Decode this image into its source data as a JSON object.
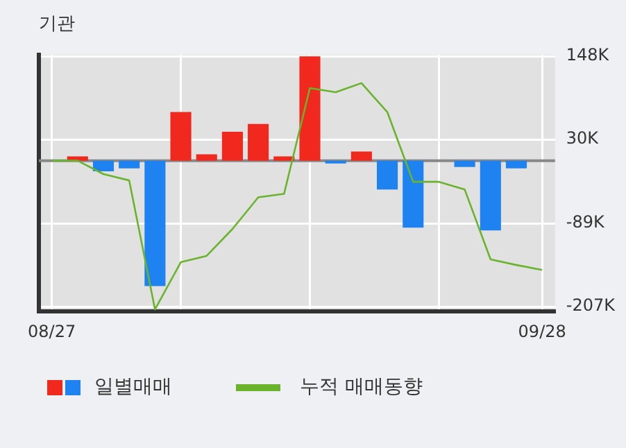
{
  "chart_data": {
    "type": "bar",
    "title": "기관",
    "categories": [
      "08/27",
      null,
      null,
      null,
      null,
      null,
      null,
      null,
      null,
      null,
      null,
      null,
      null,
      null,
      null,
      null,
      null,
      null,
      null,
      "09/28"
    ],
    "series": [
      {
        "name": "일별매매",
        "colors": [
          "#f0281e",
          "#f0281e",
          "#1e82f0",
          "#1e82f0",
          "#1e82f0",
          "#f0281e",
          "#f0281e",
          "#f0281e",
          "#f0281e",
          "#f0281e",
          "#f0281e",
          "#1e82f0",
          "#f0281e",
          "#1e82f0",
          "#1e82f0",
          "#1e82f0",
          "#1e82f0",
          "#1e82f0",
          "#1e82f0",
          "#1e82f0"
        ],
        "values": [
          0,
          6,
          -15,
          -11,
          -178,
          69,
          9,
          41,
          52,
          6,
          148,
          -4,
          13,
          -41,
          -95,
          0,
          -9,
          -99,
          -11,
          0
        ]
      },
      {
        "name": "누적 매매동향",
        "type": "line",
        "color": "#6ab42d",
        "values": [
          0,
          0,
          -19,
          -28,
          -211,
          -144,
          -135,
          -97,
          -52,
          -47,
          103,
          97,
          110,
          69,
          -30,
          -30,
          -41,
          -140,
          -148,
          -155
        ]
      }
    ],
    "ylim": [
      -214,
      150
    ],
    "yticks": [
      {
        "value": 148,
        "label": "148K"
      },
      {
        "value": 30,
        "label": "30K"
      },
      {
        "value": -89,
        "label": "-89K"
      },
      {
        "value": -207,
        "label": "-207K"
      }
    ],
    "grid": true,
    "legend": "bottom",
    "marker": "none",
    "line_style": "solid"
  }
}
